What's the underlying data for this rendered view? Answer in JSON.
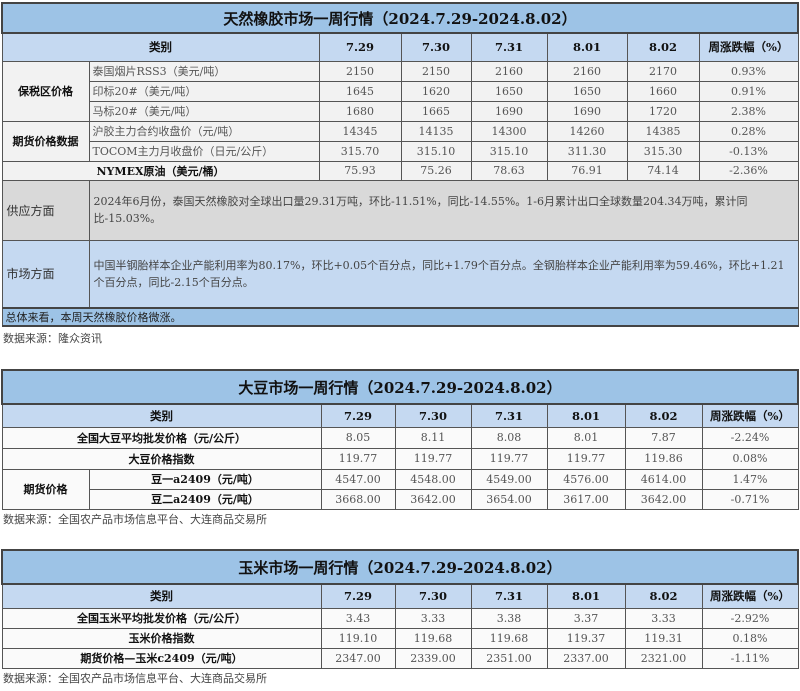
{
  "columns": [
    "类别",
    "7.29",
    "7.30",
    "7.31",
    "8.01",
    "8.02",
    "周涨跌幅（%）"
  ],
  "rubber": {
    "title": "天然橡胶市场一周行情（2024.7.29-2024.8.02）",
    "groups": [
      {
        "label": "保税区价格",
        "rows": [
          {
            "name": "泰国烟片RSS3（美元/吨）",
            "values": [
              "2150",
              "2150",
              "2160",
              "2160",
              "2170",
              "0.93%"
            ]
          },
          {
            "name": "印标20#（美元/吨）",
            "values": [
              "1645",
              "1620",
              "1650",
              "1650",
              "1660",
              "0.91%"
            ]
          },
          {
            "name": "马标20#（美元/吨）",
            "values": [
              "1680",
              "1665",
              "1690",
              "1690",
              "1720",
              "2.38%"
            ]
          }
        ]
      },
      {
        "label": "期货价格数据",
        "rows": [
          {
            "name": "沪胶主力合约收盘价（元/吨）",
            "values": [
              "14345",
              "14135",
              "14300",
              "14260",
              "14385",
              "0.28%"
            ]
          },
          {
            "name": "TOCOM主力月收盘价（日元/公斤）",
            "values": [
              "315.70",
              "315.10",
              "315.10",
              "311.30",
              "315.30",
              "-0.13%"
            ]
          }
        ]
      }
    ],
    "oil": {
      "name": "NYMEX原油（美元/桶）",
      "values": [
        "75.93",
        "75.26",
        "78.63",
        "76.91",
        "74.14",
        "-2.36%"
      ]
    },
    "supply": {
      "label": "供应方面",
      "text": "2024年6月份，泰国天然橡胶对全球出口量29.31万吨，环比-11.51%，同比-14.55%。1-6月累计出口全球数量204.34万吨，累计同比-15.03%。"
    },
    "market": {
      "label": "市场方面",
      "text": "中国半钢胎样本企业产能利用率为80.17%，环比+0.05个百分点，同比+1.79个百分点。全钢胎样本企业产能利用率为59.46%，环比+1.21个百分点，同比-2.15个百分点。"
    },
    "summary": "总体来看，本周天然橡胶价格微涨。",
    "source": "数据来源：隆众资讯"
  },
  "soybean": {
    "title": "大豆市场一周行情（2024.7.29-2024.8.02）",
    "rows": [
      {
        "name": "全国大豆平均批发价格（元/公斤）",
        "values": [
          "8.05",
          "8.11",
          "8.08",
          "8.01",
          "7.87",
          "-2.24%"
        ]
      },
      {
        "name": "大豆价格指数",
        "values": [
          "119.77",
          "119.77",
          "119.77",
          "119.77",
          "119.86",
          "0.08%"
        ]
      }
    ],
    "futures": {
      "label": "期货价格",
      "rows": [
        {
          "name": "豆一a2409（元/吨）",
          "values": [
            "4547.00",
            "4548.00",
            "4549.00",
            "4576.00",
            "4614.00",
            "1.47%"
          ]
        },
        {
          "name": "豆二a2409（元/吨）",
          "values": [
            "3668.00",
            "3642.00",
            "3654.00",
            "3617.00",
            "3642.00",
            "-0.71%"
          ]
        }
      ]
    },
    "source": "数据来源：全国农产品市场信息平台、大连商品交易所"
  },
  "corn": {
    "title": "玉米市场一周行情（2024.7.29-2024.8.02）",
    "rows": [
      {
        "name": "全国玉米平均批发价格（元/公斤）",
        "values": [
          "3.43",
          "3.33",
          "3.38",
          "3.37",
          "3.33",
          "-2.92%"
        ]
      },
      {
        "name": "玉米价格指数",
        "values": [
          "119.10",
          "119.68",
          "119.68",
          "119.37",
          "119.31",
          "0.18%"
        ]
      },
      {
        "name": "期货价格—玉米c2409（元/吨）",
        "values": [
          "2347.00",
          "2339.00",
          "2351.00",
          "2337.00",
          "2321.00",
          "-1.11%"
        ]
      }
    ],
    "source": "数据来源：全国农产品市场信息平台、大连商品交易所"
  }
}
